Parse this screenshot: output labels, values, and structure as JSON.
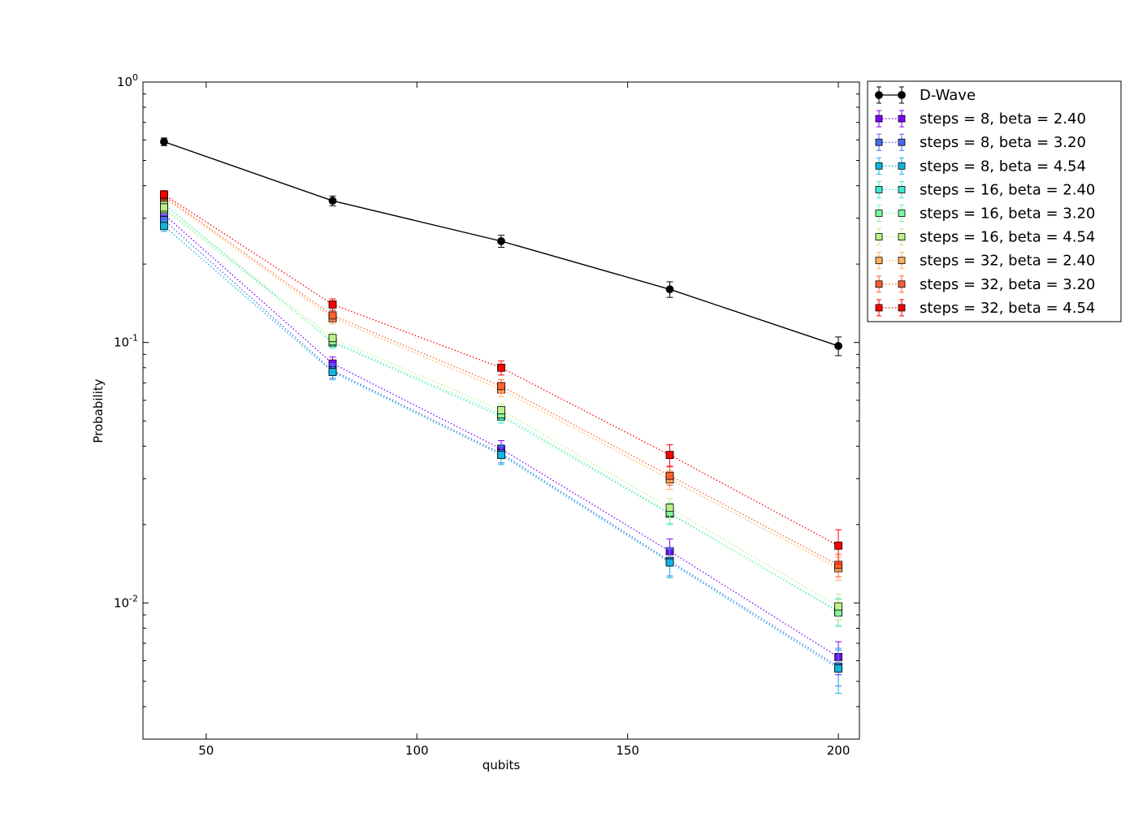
{
  "chart_data": {
    "type": "line",
    "title": "",
    "xlabel": "qubits",
    "ylabel": "Probability",
    "x": [
      40,
      80,
      120,
      160,
      200
    ],
    "xlim": [
      35,
      205
    ],
    "ylim": [
      0.003,
      1.0
    ],
    "yscale": "log",
    "xticks": [
      50,
      100,
      150,
      200
    ],
    "yticks": [
      {
        "value": 0.01,
        "base": "10",
        "exp": "-2"
      },
      {
        "value": 0.1,
        "base": "10",
        "exp": "-1"
      },
      {
        "value": 1.0,
        "base": "10",
        "exp": "0"
      }
    ],
    "grid": false,
    "legend_position": "outside-right-top",
    "series": [
      {
        "name": "D-Wave",
        "color": "#000000",
        "marker": "circle",
        "linestyle": "solid",
        "values": [
          0.59,
          0.35,
          0.245,
          0.16,
          0.097
        ],
        "errors": [
          0.02,
          0.015,
          0.013,
          0.011,
          0.008
        ]
      },
      {
        "name": "steps = 8, beta = 2.40",
        "color": "#8000ff",
        "marker": "square",
        "linestyle": "dotted",
        "values": [
          0.31,
          0.083,
          0.039,
          0.0158,
          0.0062
        ],
        "errors": [
          0.013,
          0.005,
          0.003,
          0.0018,
          0.0009
        ]
      },
      {
        "name": "steps = 8, beta = 3.20",
        "color": "#4a6cf0",
        "marker": "square",
        "linestyle": "dotted",
        "values": [
          0.295,
          0.078,
          0.0375,
          0.0145,
          0.0057
        ],
        "errors": [
          0.013,
          0.005,
          0.003,
          0.0018,
          0.0009
        ]
      },
      {
        "name": "steps = 8, beta = 4.54",
        "color": "#12b4e0",
        "marker": "square",
        "linestyle": "dotted",
        "values": [
          0.28,
          0.077,
          0.037,
          0.0143,
          0.0056
        ],
        "errors": [
          0.013,
          0.005,
          0.003,
          0.0018,
          0.0011
        ]
      },
      {
        "name": "steps = 16, beta = 2.40",
        "color": "#3ee6d0",
        "marker": "square",
        "linestyle": "dotted",
        "values": [
          0.34,
          0.1,
          0.052,
          0.022,
          0.0093
        ],
        "errors": [
          0.013,
          0.005,
          0.003,
          0.002,
          0.0011
        ]
      },
      {
        "name": "steps = 16, beta = 3.20",
        "color": "#7cf5a0",
        "marker": "square",
        "linestyle": "dotted",
        "values": [
          0.325,
          0.101,
          0.053,
          0.0222,
          0.0092
        ],
        "errors": [
          0.013,
          0.005,
          0.003,
          0.002,
          0.0011
        ]
      },
      {
        "name": "steps = 16, beta = 4.54",
        "color": "#bdf08a",
        "marker": "square",
        "linestyle": "dotted",
        "values": [
          0.33,
          0.104,
          0.055,
          0.0232,
          0.0097
        ],
        "errors": [
          0.013,
          0.005,
          0.003,
          0.002,
          0.0011
        ]
      },
      {
        "name": "steps = 32, beta = 2.40",
        "color": "#ffb060",
        "marker": "square",
        "linestyle": "dotted",
        "values": [
          0.36,
          0.124,
          0.066,
          0.0298,
          0.0136
        ],
        "errors": [
          0.013,
          0.006,
          0.004,
          0.0025,
          0.0014
        ]
      },
      {
        "name": "steps = 32, beta = 3.20",
        "color": "#ff6030",
        "marker": "square",
        "linestyle": "dotted",
        "values": [
          0.365,
          0.127,
          0.068,
          0.0308,
          0.014
        ],
        "errors": [
          0.013,
          0.006,
          0.004,
          0.0025,
          0.0014
        ]
      },
      {
        "name": "steps = 32, beta = 4.54",
        "color": "#ff0000",
        "marker": "square",
        "linestyle": "dotted",
        "values": [
          0.37,
          0.14,
          0.08,
          0.037,
          0.0166
        ],
        "errors": [
          0.013,
          0.007,
          0.005,
          0.0035,
          0.0025
        ]
      }
    ]
  }
}
